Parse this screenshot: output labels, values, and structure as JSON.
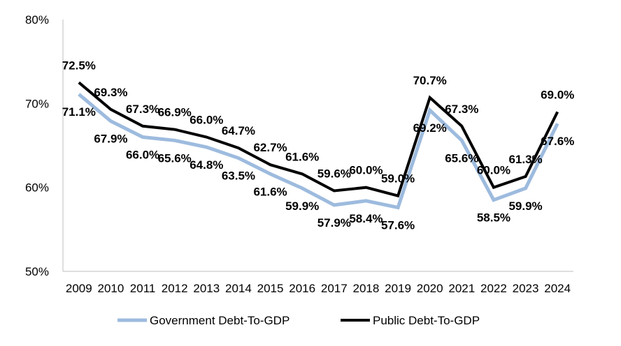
{
  "chart_data": {
    "type": "line",
    "title": "",
    "xlabel": "",
    "ylabel": "",
    "categories": [
      "2009",
      "2010",
      "2011",
      "2012",
      "2013",
      "2014",
      "2015",
      "2016",
      "2017",
      "2018",
      "2019",
      "2020",
      "2021",
      "2022",
      "2023",
      "2024"
    ],
    "ylim": [
      50,
      80
    ],
    "yticks": [
      50,
      60,
      70,
      80
    ],
    "ytick_labels": [
      "50%",
      "60%",
      "70%",
      "80%"
    ],
    "grid": false,
    "legend_position": "bottom",
    "series": [
      {
        "name": "Government Debt-To-GDP",
        "color": "#9dbbde",
        "values": [
          71.1,
          67.9,
          66.0,
          65.6,
          64.8,
          63.5,
          61.6,
          59.9,
          57.9,
          58.4,
          57.6,
          69.2,
          65.6,
          58.5,
          59.9,
          67.6
        ],
        "labels": [
          "71.1%",
          "67.9%",
          "66.0%",
          "65.6%",
          "64.8%",
          "63.5%",
          "61.6%",
          "59.9%",
          "57.9%",
          "58.4%",
          "57.6%",
          "69.2%",
          "65.6%",
          "58.5%",
          "59.9%",
          "67.6%"
        ]
      },
      {
        "name": "Public Debt-To-GDP",
        "color": "#000000",
        "values": [
          72.5,
          69.3,
          67.3,
          66.9,
          66.0,
          64.7,
          62.7,
          61.6,
          59.6,
          60.0,
          59.0,
          70.7,
          67.3,
          60.0,
          61.3,
          69.0
        ],
        "labels": [
          "72.5%",
          "69.3%",
          "67.3%",
          "66.9%",
          "66.0%",
          "64.7%",
          "62.7%",
          "61.6%",
          "59.6%",
          "60.0%",
          "59.0%",
          "70.7%",
          "67.3%",
          "60.0%",
          "61.3%",
          "69.0%"
        ]
      }
    ]
  }
}
